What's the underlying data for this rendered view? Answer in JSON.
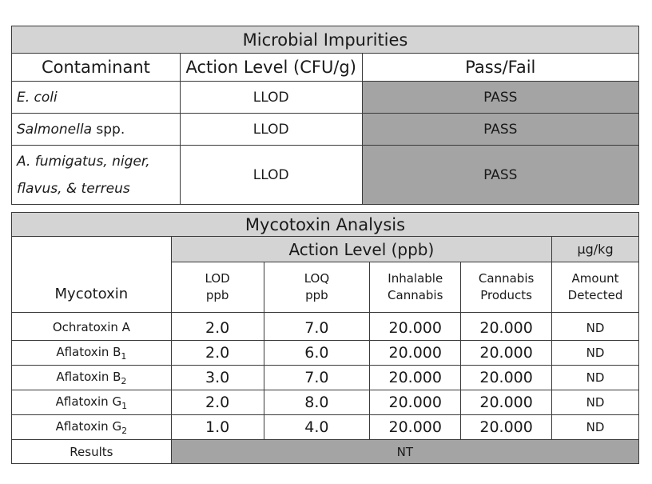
{
  "microbial": {
    "title": "Microbial Impurities",
    "headers": {
      "contaminant": "Contaminant",
      "action_level": "Action Level (CFU/g)",
      "pass_fail": "Pass/Fail"
    },
    "rows": [
      {
        "name_italic": "E. coli",
        "name_suffix": "",
        "action": "LLOD",
        "result": "PASS"
      },
      {
        "name_italic": "Salmonella",
        "name_suffix": " spp.",
        "action": "LLOD",
        "result": "PASS"
      },
      {
        "name_line1": "A. fumigatus, niger,",
        "name_line2": "flavus, & terreus",
        "action": "LLOD",
        "result": "PASS"
      }
    ]
  },
  "mycotoxin": {
    "title": "Mycotoxin Analysis",
    "col_mycotoxin": "Mycotoxin",
    "action_level": "Action Level (ppb)",
    "unit": "µg/kg",
    "sub": {
      "lod_1": "LOD",
      "lod_2": "ppb",
      "loq_1": "LOQ",
      "loq_2": "ppb",
      "inh_1": "Inhalable",
      "inh_2": "Cannabis",
      "cp_1": "Cannabis",
      "cp_2": "Products",
      "amt_1": "Amount",
      "amt_2": "Detected"
    },
    "rows": [
      {
        "name": "Ochratoxin A",
        "sub": "",
        "lod": "2.0",
        "loq": "7.0",
        "inhalable": "20.000",
        "products": "20.000",
        "amount": "ND"
      },
      {
        "name": "Aflatoxin B",
        "sub": "1",
        "lod": "2.0",
        "loq": "6.0",
        "inhalable": "20.000",
        "products": "20.000",
        "amount": "ND"
      },
      {
        "name": "Aflatoxin B",
        "sub": "2",
        "lod": "3.0",
        "loq": "7.0",
        "inhalable": "20.000",
        "products": "20.000",
        "amount": "ND"
      },
      {
        "name": "Aflatoxin G",
        "sub": "1",
        "lod": "2.0",
        "loq": "8.0",
        "inhalable": "20.000",
        "products": "20.000",
        "amount": "ND"
      },
      {
        "name": "Aflatoxin G",
        "sub": "2",
        "lod": "1.0",
        "loq": "4.0",
        "inhalable": "20.000",
        "products": "20.000",
        "amount": "ND"
      }
    ],
    "results_label": "Results",
    "results_value": "NT"
  },
  "colors": {
    "header_bg": "#d4d4d4",
    "result_bg": "#a4a4a4",
    "border": "#3a3a3a"
  }
}
